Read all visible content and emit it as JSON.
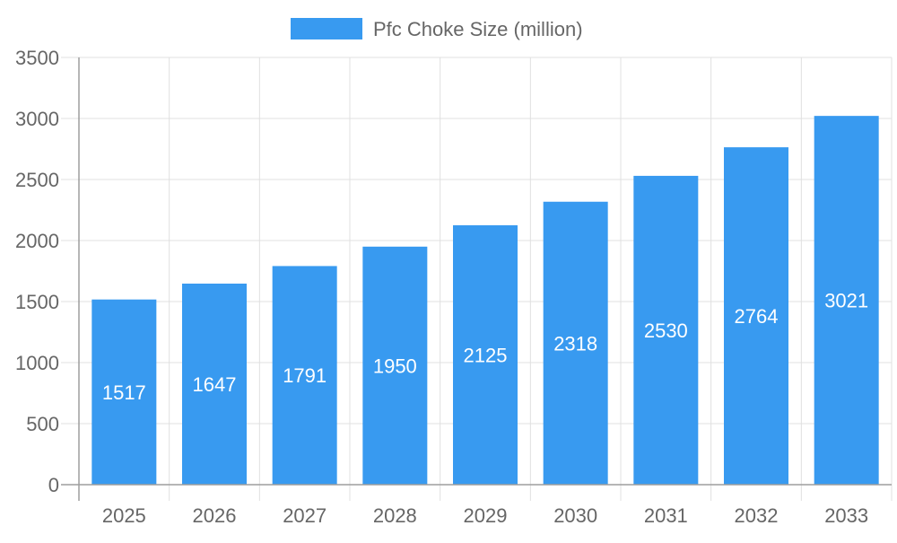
{
  "chart_data": {
    "type": "bar",
    "title": "",
    "xlabel": "",
    "ylabel": "",
    "categories": [
      "2025",
      "2026",
      "2027",
      "2028",
      "2029",
      "2030",
      "2031",
      "2032",
      "2033"
    ],
    "series": [
      {
        "name": "Pfc Choke Size (million)",
        "values": [
          1517,
          1647,
          1791,
          1950,
          2125,
          2318,
          2530,
          2764,
          3021
        ],
        "color": "#389af0"
      }
    ],
    "ylim": [
      0,
      3500
    ],
    "yticks": [
      0,
      500,
      1000,
      1500,
      2000,
      2500,
      3000,
      3500
    ],
    "grid": true,
    "legend": "top-center",
    "data_labels": true
  }
}
